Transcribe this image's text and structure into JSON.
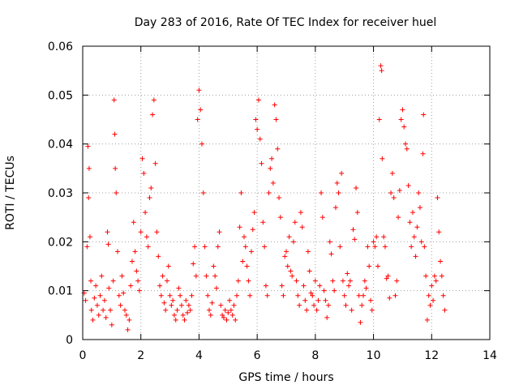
{
  "chart_data": {
    "type": "scatter",
    "title": "Day 283 of 2016, Rate Of TEC Index for receiver huel",
    "xlabel": "GPS time / hours",
    "ylabel": "ROTI / TECUs",
    "xlim": [
      0,
      14
    ],
    "ylim": [
      0,
      0.06
    ],
    "xticks": [
      0,
      2,
      4,
      6,
      8,
      10,
      12,
      14
    ],
    "xtick_labels": [
      "0",
      "2",
      "4",
      "6",
      "8",
      "10",
      "12",
      "14"
    ],
    "yticks": [
      0,
      0.01,
      0.02,
      0.03,
      0.04,
      0.05,
      0.06
    ],
    "ytick_labels": [
      "0",
      "0.01",
      "0.02",
      "0.03",
      "0.04",
      "0.05",
      "0.06"
    ],
    "grid": true,
    "marker": "+",
    "color": "#ff0000",
    "series": [
      {
        "name": "ROTI",
        "points": [
          [
            0.05,
            0.0095
          ],
          [
            0.1,
            0.008
          ],
          [
            0.15,
            0.019
          ],
          [
            0.18,
            0.0395
          ],
          [
            0.2,
            0.029
          ],
          [
            0.22,
            0.035
          ],
          [
            0.25,
            0.021
          ],
          [
            0.28,
            0.012
          ],
          [
            0.3,
            0.006
          ],
          [
            0.35,
            0.004
          ],
          [
            0.4,
            0.0085
          ],
          [
            0.45,
            0.011
          ],
          [
            0.5,
            0.007
          ],
          [
            0.55,
            0.005
          ],
          [
            0.6,
            0.009
          ],
          [
            0.65,
            0.013
          ],
          [
            0.7,
            0.006
          ],
          [
            0.75,
            0.008
          ],
          [
            0.8,
            0.0045
          ],
          [
            0.85,
            0.022
          ],
          [
            0.88,
            0.0195
          ],
          [
            0.9,
            0.0105
          ],
          [
            0.95,
            0.006
          ],
          [
            1.0,
            0.003
          ],
          [
            1.05,
            0.012
          ],
          [
            1.08,
            0.049
          ],
          [
            1.1,
            0.042
          ],
          [
            1.12,
            0.035
          ],
          [
            1.15,
            0.03
          ],
          [
            1.2,
            0.018
          ],
          [
            1.25,
            0.009
          ],
          [
            1.3,
            0.007
          ],
          [
            1.35,
            0.013
          ],
          [
            1.4,
            0.0095
          ],
          [
            1.45,
            0.006
          ],
          [
            1.5,
            0.005
          ],
          [
            1.55,
            0.002
          ],
          [
            1.6,
            0.004
          ],
          [
            1.65,
            0.011
          ],
          [
            1.7,
            0.016
          ],
          [
            1.75,
            0.024
          ],
          [
            1.8,
            0.018
          ],
          [
            1.85,
            0.014
          ],
          [
            1.9,
            0.012
          ],
          [
            1.95,
            0.01
          ],
          [
            2.0,
            0.022
          ],
          [
            2.05,
            0.037
          ],
          [
            2.1,
            0.034
          ],
          [
            2.15,
            0.026
          ],
          [
            2.2,
            0.021
          ],
          [
            2.25,
            0.019
          ],
          [
            2.3,
            0.029
          ],
          [
            2.35,
            0.031
          ],
          [
            2.4,
            0.046
          ],
          [
            2.45,
            0.049
          ],
          [
            2.5,
            0.036
          ],
          [
            2.55,
            0.022
          ],
          [
            2.6,
            0.017
          ],
          [
            2.65,
            0.011
          ],
          [
            2.7,
            0.009
          ],
          [
            2.75,
            0.013
          ],
          [
            2.8,
            0.0075
          ],
          [
            2.85,
            0.006
          ],
          [
            2.9,
            0.012
          ],
          [
            2.95,
            0.015
          ],
          [
            3.0,
            0.009
          ],
          [
            3.05,
            0.007
          ],
          [
            3.1,
            0.008
          ],
          [
            3.15,
            0.005
          ],
          [
            3.2,
            0.004
          ],
          [
            3.25,
            0.006
          ],
          [
            3.3,
            0.0105
          ],
          [
            3.35,
            0.009
          ],
          [
            3.4,
            0.007
          ],
          [
            3.45,
            0.005
          ],
          [
            3.5,
            0.004
          ],
          [
            3.55,
            0.008
          ],
          [
            3.6,
            0.0055
          ],
          [
            3.65,
            0.007
          ],
          [
            3.7,
            0.006
          ],
          [
            3.75,
            0.009
          ],
          [
            3.8,
            0.0155
          ],
          [
            3.85,
            0.019
          ],
          [
            3.9,
            0.013
          ],
          [
            3.95,
            0.045
          ],
          [
            4.0,
            0.051
          ],
          [
            4.05,
            0.047
          ],
          [
            4.1,
            0.04
          ],
          [
            4.15,
            0.03
          ],
          [
            4.2,
            0.019
          ],
          [
            4.25,
            0.013
          ],
          [
            4.3,
            0.009
          ],
          [
            4.35,
            0.006
          ],
          [
            4.4,
            0.005
          ],
          [
            4.45,
            0.0075
          ],
          [
            4.5,
            0.015
          ],
          [
            4.55,
            0.013
          ],
          [
            4.6,
            0.0105
          ],
          [
            4.65,
            0.019
          ],
          [
            4.7,
            0.022
          ],
          [
            4.75,
            0.007
          ],
          [
            4.8,
            0.005
          ],
          [
            4.85,
            0.0045
          ],
          [
            4.9,
            0.006
          ],
          [
            4.95,
            0.004
          ],
          [
            5.0,
            0.0055
          ],
          [
            5.05,
            0.008
          ],
          [
            5.1,
            0.006
          ],
          [
            5.15,
            0.005
          ],
          [
            5.2,
            0.007
          ],
          [
            5.25,
            0.004
          ],
          [
            5.3,
            0.009
          ],
          [
            5.35,
            0.012
          ],
          [
            5.4,
            0.023
          ],
          [
            5.45,
            0.03
          ],
          [
            5.5,
            0.016
          ],
          [
            5.55,
            0.021
          ],
          [
            5.6,
            0.019
          ],
          [
            5.65,
            0.015
          ],
          [
            5.7,
            0.012
          ],
          [
            5.75,
            0.009
          ],
          [
            5.8,
            0.018
          ],
          [
            5.85,
            0.0225
          ],
          [
            5.9,
            0.026
          ],
          [
            5.95,
            0.045
          ],
          [
            6.0,
            0.043
          ],
          [
            6.05,
            0.049
          ],
          [
            6.1,
            0.041
          ],
          [
            6.15,
            0.036
          ],
          [
            6.2,
            0.024
          ],
          [
            6.25,
            0.019
          ],
          [
            6.3,
            0.011
          ],
          [
            6.35,
            0.009
          ],
          [
            6.4,
            0.03
          ],
          [
            6.45,
            0.035
          ],
          [
            6.5,
            0.037
          ],
          [
            6.55,
            0.032
          ],
          [
            6.6,
            0.048
          ],
          [
            6.65,
            0.045
          ],
          [
            6.7,
            0.039
          ],
          [
            6.75,
            0.029
          ],
          [
            6.8,
            0.025
          ],
          [
            6.85,
            0.011
          ],
          [
            6.9,
            0.009
          ],
          [
            6.95,
            0.017
          ],
          [
            7.0,
            0.018
          ],
          [
            7.05,
            0.015
          ],
          [
            7.1,
            0.021
          ],
          [
            7.15,
            0.014
          ],
          [
            7.2,
            0.013
          ],
          [
            7.25,
            0.02
          ],
          [
            7.3,
            0.024
          ],
          [
            7.35,
            0.012
          ],
          [
            7.4,
            0.009
          ],
          [
            7.45,
            0.007
          ],
          [
            7.5,
            0.026
          ],
          [
            7.55,
            0.023
          ],
          [
            7.6,
            0.011
          ],
          [
            7.65,
            0.008
          ],
          [
            7.7,
            0.006
          ],
          [
            7.75,
            0.018
          ],
          [
            7.8,
            0.014
          ],
          [
            7.85,
            0.0095
          ],
          [
            7.9,
            0.009
          ],
          [
            7.95,
            0.007
          ],
          [
            8.0,
            0.012
          ],
          [
            8.05,
            0.006
          ],
          [
            8.1,
            0.008
          ],
          [
            8.15,
            0.011
          ],
          [
            8.2,
            0.03
          ],
          [
            8.25,
            0.025
          ],
          [
            8.3,
            0.01
          ],
          [
            8.35,
            0.008
          ],
          [
            8.4,
            0.0045
          ],
          [
            8.45,
            0.007
          ],
          [
            8.5,
            0.02
          ],
          [
            8.55,
            0.0175
          ],
          [
            8.6,
            0.012
          ],
          [
            8.65,
            0.01
          ],
          [
            8.7,
            0.027
          ],
          [
            8.75,
            0.032
          ],
          [
            8.8,
            0.03
          ],
          [
            8.85,
            0.019
          ],
          [
            8.9,
            0.034
          ],
          [
            8.95,
            0.012
          ],
          [
            9.0,
            0.009
          ],
          [
            9.05,
            0.007
          ],
          [
            9.1,
            0.0135
          ],
          [
            9.15,
            0.011
          ],
          [
            9.2,
            0.012
          ],
          [
            9.25,
            0.006
          ],
          [
            9.3,
            0.0225
          ],
          [
            9.35,
            0.0205
          ],
          [
            9.4,
            0.031
          ],
          [
            9.45,
            0.026
          ],
          [
            9.5,
            0.009
          ],
          [
            9.55,
            0.0035
          ],
          [
            9.6,
            0.007
          ],
          [
            9.65,
            0.009
          ],
          [
            9.7,
            0.012
          ],
          [
            9.75,
            0.0105
          ],
          [
            9.8,
            0.019
          ],
          [
            9.85,
            0.015
          ],
          [
            9.9,
            0.008
          ],
          [
            9.95,
            0.006
          ],
          [
            10.0,
            0.02
          ],
          [
            10.05,
            0.019
          ],
          [
            10.1,
            0.021
          ],
          [
            10.15,
            0.015
          ],
          [
            10.2,
            0.045
          ],
          [
            10.25,
            0.056
          ],
          [
            10.28,
            0.055
          ],
          [
            10.3,
            0.037
          ],
          [
            10.35,
            0.021
          ],
          [
            10.4,
            0.019
          ],
          [
            10.45,
            0.0125
          ],
          [
            10.5,
            0.013
          ],
          [
            10.55,
            0.0085
          ],
          [
            10.6,
            0.03
          ],
          [
            10.65,
            0.034
          ],
          [
            10.7,
            0.029
          ],
          [
            10.75,
            0.009
          ],
          [
            10.8,
            0.012
          ],
          [
            10.85,
            0.025
          ],
          [
            10.9,
            0.0305
          ],
          [
            10.95,
            0.045
          ],
          [
            11.0,
            0.047
          ],
          [
            11.05,
            0.0435
          ],
          [
            11.1,
            0.04
          ],
          [
            11.15,
            0.039
          ],
          [
            11.2,
            0.0315
          ],
          [
            11.25,
            0.024
          ],
          [
            11.3,
            0.019
          ],
          [
            11.35,
            0.026
          ],
          [
            11.4,
            0.021
          ],
          [
            11.45,
            0.017
          ],
          [
            11.5,
            0.023
          ],
          [
            11.55,
            0.03
          ],
          [
            11.6,
            0.027
          ],
          [
            11.65,
            0.02
          ],
          [
            11.7,
            0.038
          ],
          [
            11.72,
            0.046
          ],
          [
            11.75,
            0.019
          ],
          [
            11.8,
            0.013
          ],
          [
            11.85,
            0.004
          ],
          [
            11.9,
            0.009
          ],
          [
            11.95,
            0.007
          ],
          [
            12.0,
            0.011
          ],
          [
            12.05,
            0.008
          ],
          [
            12.1,
            0.013
          ],
          [
            12.15,
            0.012
          ],
          [
            12.2,
            0.029
          ],
          [
            12.25,
            0.022
          ],
          [
            12.3,
            0.016
          ],
          [
            12.35,
            0.013
          ],
          [
            12.4,
            0.009
          ],
          [
            12.45,
            0.006
          ]
        ]
      }
    ]
  }
}
